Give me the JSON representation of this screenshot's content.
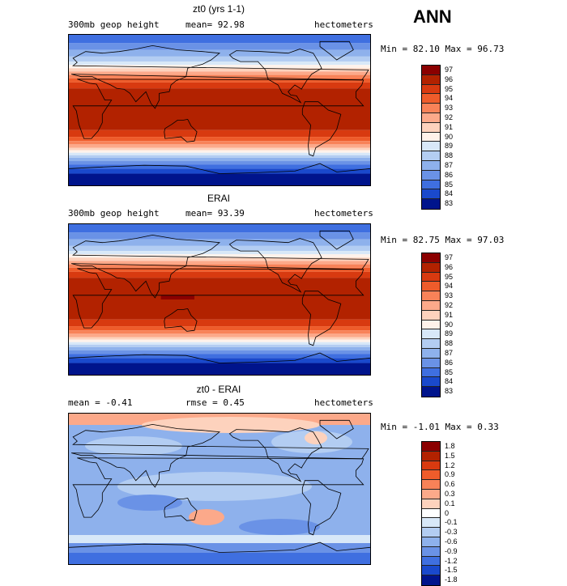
{
  "season": "ANN",
  "panels": [
    {
      "title": "zt0 (yrs 1-1)",
      "left_label": "300mb geop height",
      "mid_label": "mean=  92.98",
      "right_label": "hectometers",
      "minmax": "Min =  82.10 Max =  96.73"
    },
    {
      "title": "ERAI",
      "left_label": "300mb geop height",
      "mid_label": "mean=  93.39",
      "right_label": "hectometers",
      "minmax": "Min =  82.75 Max =  97.03"
    },
    {
      "title": "zt0 - ERAI",
      "left_label": "mean =   -0.41",
      "mid_label": "rmse =    0.45",
      "right_label": "hectometers",
      "minmax": "Min =  -1.01 Max =   0.33"
    }
  ],
  "colorbars": {
    "field_levels": [
      "97",
      "96",
      "95",
      "94",
      "93",
      "92",
      "91",
      "90",
      "89",
      "88",
      "87",
      "86",
      "85",
      "84",
      "83"
    ],
    "field_colors": [
      "#8b0000",
      "#b22200",
      "#d83a10",
      "#ee5c2b",
      "#f88258",
      "#fca98a",
      "#fdd2bd",
      "#fff2ea",
      "#d8e8f8",
      "#b3cdf2",
      "#8eb1ec",
      "#6a92e6",
      "#3f6fe0",
      "#1a49cc",
      "#00148c"
    ],
    "diff_levels": [
      "1.8",
      "1.5",
      "1.2",
      "0.9",
      "0.6",
      "0.3",
      "0.1",
      "0",
      "-0.1",
      "-0.3",
      "-0.6",
      "-0.9",
      "-1.2",
      "-1.5",
      "-1.8"
    ],
    "diff_colors": [
      "#8b0000",
      "#b22200",
      "#d83a10",
      "#ee5c2b",
      "#f88258",
      "#fca98a",
      "#fdd2bd",
      "#ffffff",
      "#d8e8f8",
      "#b3cdf2",
      "#8eb1ec",
      "#6a92e6",
      "#3f6fe0",
      "#1a49cc",
      "#00148c"
    ]
  },
  "chart_data": [
    {
      "type": "heatmap",
      "title": "zt0 (yrs 1-1)",
      "variable": "300mb geop height",
      "units": "hectometers",
      "mean": 92.98,
      "min": 82.1,
      "max": 96.73,
      "contour_levels": [
        83,
        84,
        85,
        86,
        87,
        88,
        89,
        90,
        91,
        92,
        93,
        94,
        95,
        96,
        97
      ]
    },
    {
      "type": "heatmap",
      "title": "ERAI",
      "variable": "300mb geop height",
      "units": "hectometers",
      "mean": 93.39,
      "min": 82.75,
      "max": 97.03,
      "contour_levels": [
        83,
        84,
        85,
        86,
        87,
        88,
        89,
        90,
        91,
        92,
        93,
        94,
        95,
        96,
        97
      ]
    },
    {
      "type": "heatmap",
      "title": "zt0 - ERAI",
      "units": "hectometers",
      "mean": -0.41,
      "rmse": 0.45,
      "min": -1.01,
      "max": 0.33,
      "contour_levels": [
        -1.8,
        -1.5,
        -1.2,
        -0.9,
        -0.6,
        -0.3,
        -0.1,
        0,
        0.1,
        0.3,
        0.6,
        0.9,
        1.2,
        1.5,
        1.8
      ]
    }
  ]
}
